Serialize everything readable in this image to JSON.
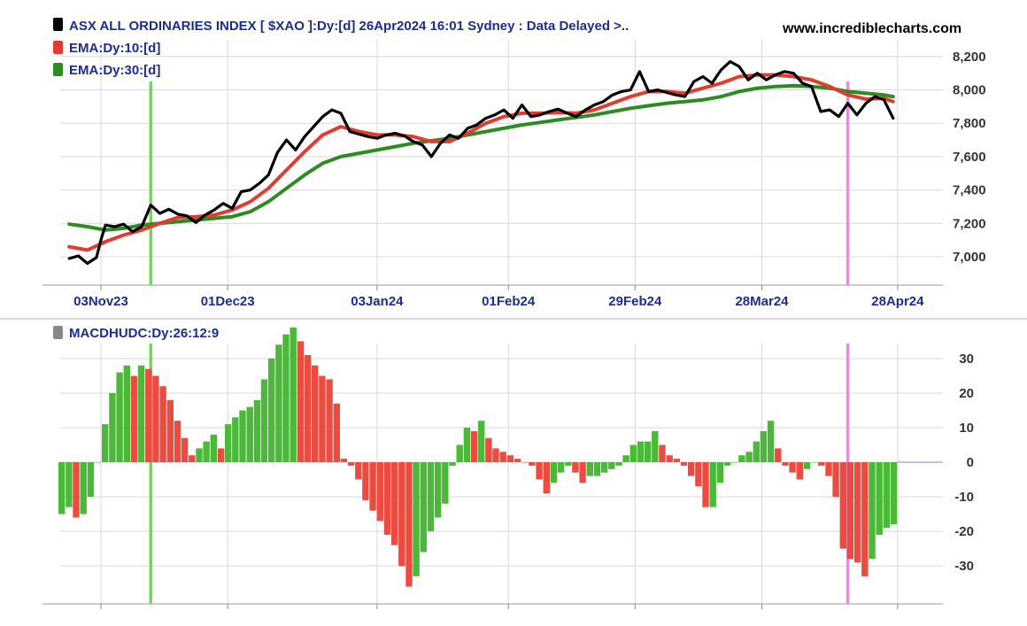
{
  "header": {
    "title": "ASX ALL ORDINARIES INDEX [ $XAO ]:Dy:[d]   26Apr2024 16:01 Sydney : Data Delayed >..",
    "brand": "www.incrediblecharts.com"
  },
  "colors": {
    "price": "#000000",
    "ema10": "#e03c31",
    "ema30": "#2e8b22",
    "hist_up": "#4cb83a",
    "hist_down": "#ea4c42",
    "hist_series": "#888888",
    "marker_green": "#66e24a",
    "marker_pink": "#e090d6",
    "grid": "#d8d8d8",
    "tick_text": "#1c2e8c"
  },
  "chart_data": [
    {
      "type": "line",
      "title": "ASX ALL ORDINARIES INDEX [ $XAO ]:Dy:[d]   26Apr2024 16:01 Sydney : Data Delayed >..",
      "x_ticks": [
        "03Nov23",
        "01Dec23",
        "03Jan24",
        "01Feb24",
        "29Feb24",
        "28Mar24",
        "28Apr24"
      ],
      "x_tick_days": [
        0,
        28,
        61,
        90,
        118,
        146,
        176
      ],
      "y_ticks": [
        7000,
        7200,
        7400,
        7600,
        7800,
        8000,
        8200
      ],
      "y_tick_labels": [
        "7,000",
        "7,200",
        "7,400",
        "7,600",
        "7,800",
        "8,000",
        "8,200"
      ],
      "ylim": [
        6830,
        8300
      ],
      "xlim": [
        -9,
        186
      ],
      "grid": true,
      "legend_position": "top-left",
      "vertical_markers": [
        {
          "day": 11,
          "color": "green"
        },
        {
          "day": 165,
          "color": "pink"
        }
      ],
      "series": [
        {
          "name": "ASX ALL ORDINARIES INDEX [ $XAO ]:Dy:[d]",
          "color": "#000000",
          "x": [
            -7,
            -5,
            -3,
            -1,
            0,
            1,
            3,
            5,
            7,
            9,
            11,
            13,
            15,
            17,
            19,
            21,
            23,
            25,
            27,
            29,
            31,
            33,
            35,
            37,
            39,
            41,
            43,
            45,
            47,
            49,
            51,
            53,
            55,
            57,
            59,
            61,
            63,
            65,
            67,
            69,
            71,
            73,
            75,
            77,
            79,
            81,
            83,
            85,
            87,
            89,
            91,
            93,
            95,
            97,
            99,
            101,
            103,
            105,
            107,
            109,
            111,
            113,
            115,
            117,
            119,
            121,
            123,
            125,
            127,
            129,
            131,
            133,
            135,
            137,
            139,
            141,
            143,
            145,
            147,
            149,
            151,
            153,
            155,
            157,
            159,
            161,
            163,
            165,
            167,
            169,
            171,
            173,
            175
          ],
          "y": [
            6990,
            7005,
            6960,
            6995,
            7100,
            7190,
            7180,
            7195,
            7150,
            7180,
            7310,
            7260,
            7285,
            7255,
            7245,
            7205,
            7250,
            7280,
            7320,
            7290,
            7390,
            7400,
            7440,
            7490,
            7625,
            7700,
            7640,
            7720,
            7780,
            7840,
            7880,
            7860,
            7750,
            7735,
            7720,
            7710,
            7730,
            7740,
            7725,
            7690,
            7670,
            7600,
            7680,
            7730,
            7710,
            7770,
            7790,
            7830,
            7850,
            7880,
            7830,
            7910,
            7840,
            7850,
            7870,
            7885,
            7860,
            7840,
            7880,
            7910,
            7930,
            7970,
            7990,
            8000,
            8110,
            7990,
            8000,
            7985,
            7970,
            7960,
            8050,
            8080,
            8040,
            8120,
            8170,
            8140,
            8060,
            8100,
            8060,
            8090,
            8110,
            8100,
            8040,
            8020,
            7870,
            7880,
            7840,
            7920,
            7850,
            7920,
            7960,
            7940,
            7830
          ]
        },
        {
          "name": "EMA:Dy:10:[d]",
          "color": "#e03c31",
          "x": [
            -7,
            -3,
            1,
            5,
            9,
            13,
            17,
            21,
            25,
            29,
            33,
            37,
            41,
            45,
            49,
            53,
            57,
            61,
            65,
            69,
            73,
            77,
            81,
            85,
            89,
            93,
            97,
            101,
            105,
            109,
            113,
            117,
            121,
            125,
            129,
            133,
            137,
            141,
            145,
            149,
            153,
            157,
            161,
            165,
            169,
            173,
            175
          ],
          "y": [
            7060,
            7040,
            7090,
            7130,
            7160,
            7200,
            7235,
            7240,
            7250,
            7280,
            7330,
            7410,
            7520,
            7630,
            7730,
            7780,
            7750,
            7730,
            7730,
            7720,
            7690,
            7690,
            7740,
            7800,
            7840,
            7860,
            7860,
            7865,
            7860,
            7880,
            7920,
            7960,
            7990,
            7990,
            7980,
            8010,
            8040,
            8080,
            8090,
            8090,
            8080,
            8060,
            8020,
            7970,
            7945,
            7950,
            7930
          ]
        },
        {
          "name": "EMA:Dy:30:[d]",
          "color": "#2e8b22",
          "x": [
            -7,
            -3,
            1,
            5,
            9,
            13,
            17,
            21,
            25,
            29,
            33,
            37,
            41,
            45,
            49,
            53,
            57,
            61,
            65,
            69,
            73,
            77,
            81,
            85,
            89,
            93,
            97,
            101,
            105,
            109,
            113,
            117,
            121,
            125,
            129,
            133,
            137,
            141,
            145,
            149,
            153,
            157,
            161,
            165,
            169,
            173,
            175
          ],
          "y": [
            7195,
            7180,
            7160,
            7170,
            7190,
            7200,
            7210,
            7220,
            7230,
            7240,
            7270,
            7330,
            7410,
            7490,
            7560,
            7600,
            7620,
            7640,
            7660,
            7680,
            7695,
            7710,
            7730,
            7750,
            7770,
            7790,
            7805,
            7820,
            7835,
            7850,
            7870,
            7890,
            7905,
            7920,
            7930,
            7940,
            7960,
            7990,
            8010,
            8020,
            8025,
            8020,
            8010,
            7990,
            7980,
            7970,
            7960
          ]
        }
      ]
    },
    {
      "type": "bar",
      "title": "MACDHUDC:Dy:26:12:9",
      "x_ticks": [
        "03Nov23",
        "01Dec23",
        "03Jan24",
        "01Feb24",
        "29Feb24",
        "28Mar24",
        "28Apr24"
      ],
      "x_tick_days": [
        0,
        28,
        61,
        90,
        118,
        146,
        176
      ],
      "y_ticks": [
        -30,
        -20,
        -10,
        0,
        10,
        20,
        30
      ],
      "y_tick_labels": [
        "-30",
        "-20",
        "-10",
        "0",
        "10",
        "20",
        "30"
      ],
      "ylim": [
        -42,
        41
      ],
      "grid": true,
      "legend_position": "top-left",
      "series": [
        {
          "name": "MACDHUDC:Dy:26:12:9",
          "color": "#888888",
          "values": [
            -15,
            -13,
            -16,
            -15,
            -10,
            0,
            11,
            20,
            26,
            28,
            25,
            28,
            27,
            25,
            22,
            18,
            12,
            7,
            2,
            4,
            6,
            8,
            4,
            11,
            13,
            15,
            16,
            18,
            24,
            30,
            34,
            37,
            39,
            35,
            31,
            28,
            25,
            24,
            17,
            1,
            -1,
            -5,
            -11,
            -14,
            -17,
            -21,
            -24,
            -30,
            -36,
            -33,
            -26,
            -20,
            -16,
            -12,
            -1,
            5,
            10,
            9,
            12,
            7,
            4,
            3,
            2,
            1,
            0,
            -1,
            -5,
            -9,
            -6,
            -3,
            -1,
            -3,
            -6,
            -4,
            -4,
            -3,
            -2,
            -1,
            2,
            5,
            6,
            6,
            9,
            5,
            2,
            1,
            -1,
            -4,
            -7,
            -13,
            -13,
            -6,
            -1,
            0,
            2,
            3,
            6,
            9,
            12,
            4,
            -1,
            -3,
            -5,
            -2,
            0,
            -1,
            -4,
            -10,
            -25,
            -28,
            -29,
            -33,
            -28,
            -21,
            -19,
            -18
          ],
          "up_down": "uuuuuuuuuuuuuuuuuuuuuuuuuuuuuuuuuuuuuuuuuuuuuuuuuuuuuuuuuuuuuuuuuuuuuuuuuuuuuuuuuuuuuuuuuuuuuuuuuuuuuuuuuuuuuuuu"
        }
      ]
    }
  ]
}
